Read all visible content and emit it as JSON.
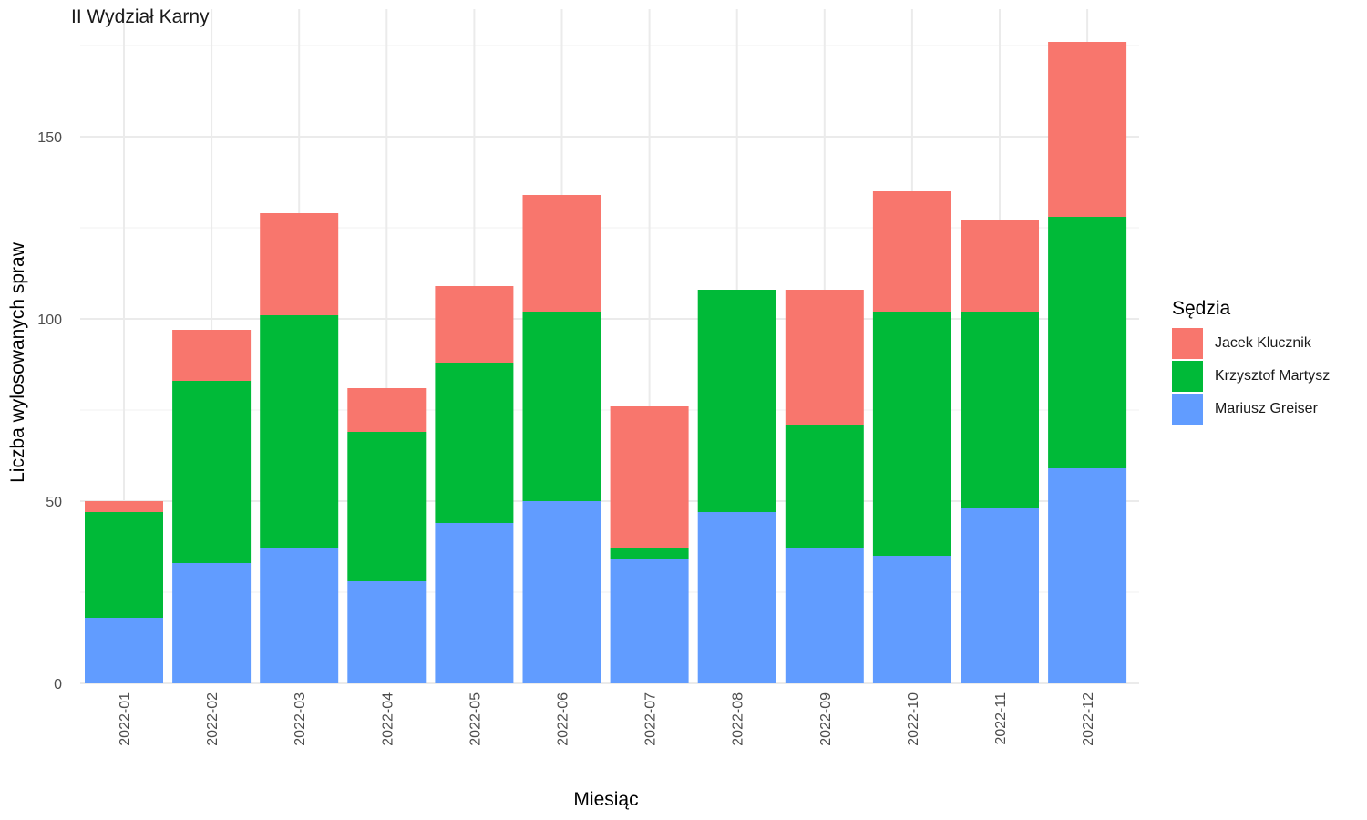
{
  "chart_data": {
    "type": "bar",
    "stacked": true,
    "title": "II Wydział Karny",
    "xlabel": "Miesiąc",
    "ylabel": "Liczba wylosowanych spraw",
    "ylim": [
      0,
      180
    ],
    "yticks": [
      0,
      50,
      100,
      150
    ],
    "grid": true,
    "legend_title": "Sędzia",
    "legend_position": "right",
    "categories": [
      "2022-01",
      "2022-02",
      "2022-03",
      "2022-04",
      "2022-05",
      "2022-06",
      "2022-07",
      "2022-08",
      "2022-09",
      "2022-10",
      "2022-11",
      "2022-12"
    ],
    "series": [
      {
        "name": "Mariusz Greiser",
        "color": "#619CFF",
        "values": [
          18,
          33,
          37,
          28,
          44,
          50,
          34,
          47,
          37,
          35,
          48,
          59
        ]
      },
      {
        "name": "Krzysztof Martysz",
        "color": "#00BA38",
        "values": [
          29,
          50,
          64,
          41,
          44,
          52,
          3,
          61,
          34,
          67,
          54,
          69
        ]
      },
      {
        "name": "Jacek Klucznik",
        "color": "#F8766D",
        "values": [
          3,
          14,
          28,
          12,
          21,
          32,
          39,
          0,
          37,
          33,
          25,
          48
        ]
      }
    ],
    "legend_order": [
      "Jacek Klucznik",
      "Krzysztof Martysz",
      "Mariusz Greiser"
    ]
  }
}
